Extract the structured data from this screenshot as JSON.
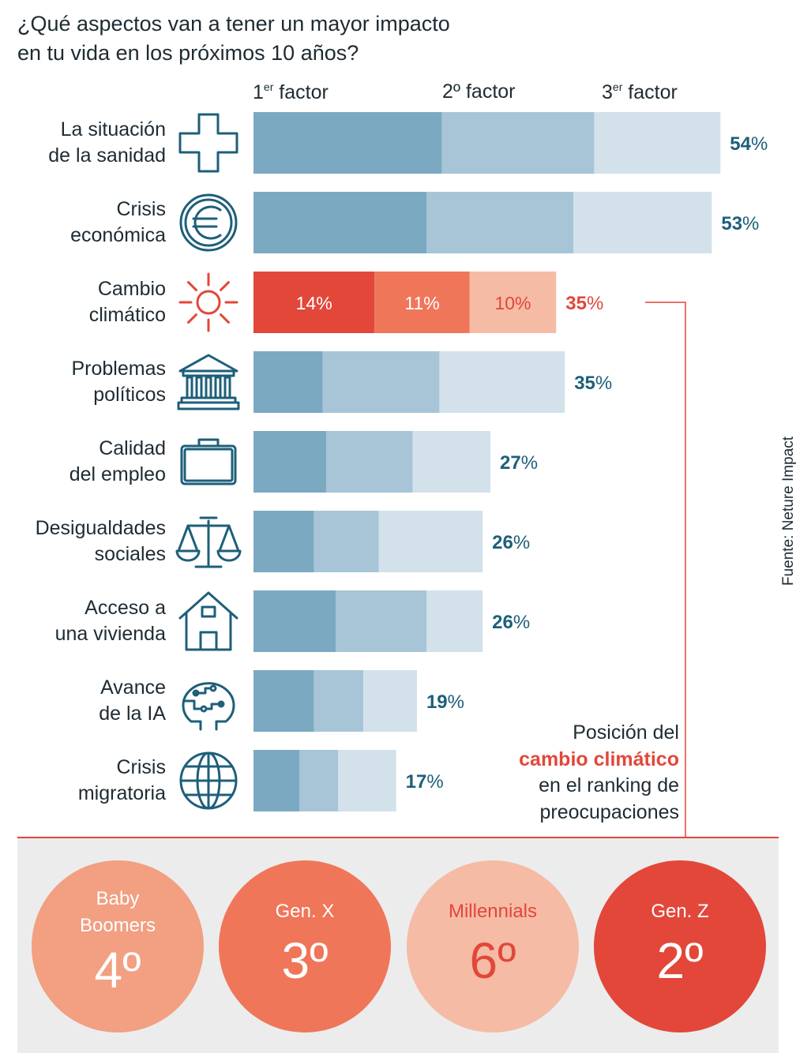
{
  "title": {
    "line1": "¿Qué aspectos van a tener un mayor impacto",
    "line2": "en tu vida en los próximos 10 años?"
  },
  "columns": [
    {
      "main": "1",
      "sup": "er",
      "rest": " factor"
    },
    {
      "main": "2º factor",
      "sup": "",
      "rest": ""
    },
    {
      "main": "3",
      "sup": "er",
      "rest": " factor"
    }
  ],
  "colors": {
    "f1": "#7ba9c2",
    "f2": "#a7c5d7",
    "f3": "#d2e1ea",
    "accent1": "#e2473a",
    "accent2": "#f07659",
    "accent3": "#f5bba5",
    "total": "#1d5f7a",
    "bottom_bg": "#ececec"
  },
  "chart_data": {
    "type": "bar",
    "stacked": true,
    "orientation": "horizontal",
    "series_names": [
      "1er factor",
      "2º factor",
      "3er factor"
    ],
    "categories": [
      {
        "label": [
          "La situación",
          "de la sanidad"
        ],
        "icon": "cross-icon",
        "f1": 21.8,
        "f2": 17.6,
        "f3": 14.6,
        "total": "54",
        "highlight": false
      },
      {
        "label": [
          "Crisis",
          "económica"
        ],
        "icon": "euro-icon",
        "f1": 20.0,
        "f2": 17.0,
        "f3": 16.0,
        "total": "53",
        "highlight": false
      },
      {
        "label": [
          "Cambio",
          "climático"
        ],
        "icon": "sun-icon",
        "f1": 14,
        "f2": 11,
        "f3": 10,
        "total": "35",
        "highlight": true,
        "labels": [
          "14%",
          "11%",
          "10%"
        ]
      },
      {
        "label": [
          "Problemas",
          "políticos"
        ],
        "icon": "government-building-icon",
        "f1": 8.0,
        "f2": 13.5,
        "f3": 14.5,
        "total": "35",
        "highlight": false
      },
      {
        "label": [
          "Calidad",
          "del empleo"
        ],
        "icon": "briefcase-icon",
        "f1": 8.4,
        "f2": 10.0,
        "f3": 9.0,
        "total": "27",
        "highlight": false
      },
      {
        "label": [
          "Desigualdades",
          "sociales"
        ],
        "icon": "scales-icon",
        "f1": 7.0,
        "f2": 7.5,
        "f3": 12.0,
        "total": "26",
        "highlight": false
      },
      {
        "label": [
          "Acceso a",
          "una vivienda"
        ],
        "icon": "house-icon",
        "f1": 9.5,
        "f2": 10.5,
        "f3": 6.5,
        "total": "26",
        "highlight": false
      },
      {
        "label": [
          "Avance",
          "de la IA"
        ],
        "icon": "brain-circuit-icon",
        "f1": 7.0,
        "f2": 5.7,
        "f3": 6.2,
        "total": "19",
        "highlight": false
      },
      {
        "label": [
          "Crisis",
          "migratoria"
        ],
        "icon": "globe-icon",
        "f1": 5.3,
        "f2": 4.5,
        "f3": 6.7,
        "total": "17",
        "highlight": false
      }
    ],
    "value_suffix": "%"
  },
  "source": "Fuente: Neture Impact",
  "note": {
    "line1": "Posición del",
    "highlight": "cambio climático",
    "line3": "en el ranking de",
    "line4": "preocupaciones"
  },
  "generations": [
    {
      "name1": "Baby",
      "name2": "Boomers",
      "rank": "4º",
      "color": "#f29f82",
      "text_color": "#ffffff"
    },
    {
      "name1": "",
      "name2": "Gen. X",
      "rank": "3º",
      "color": "#f07659",
      "text_color": "#ffffff"
    },
    {
      "name1": "",
      "name2": "Millennials",
      "rank": "6º",
      "color": "#f5bba5",
      "text_color": "#e2473a"
    },
    {
      "name1": "",
      "name2": "Gen. Z",
      "rank": "2º",
      "color": "#e2473a",
      "text_color": "#ffffff"
    }
  ]
}
